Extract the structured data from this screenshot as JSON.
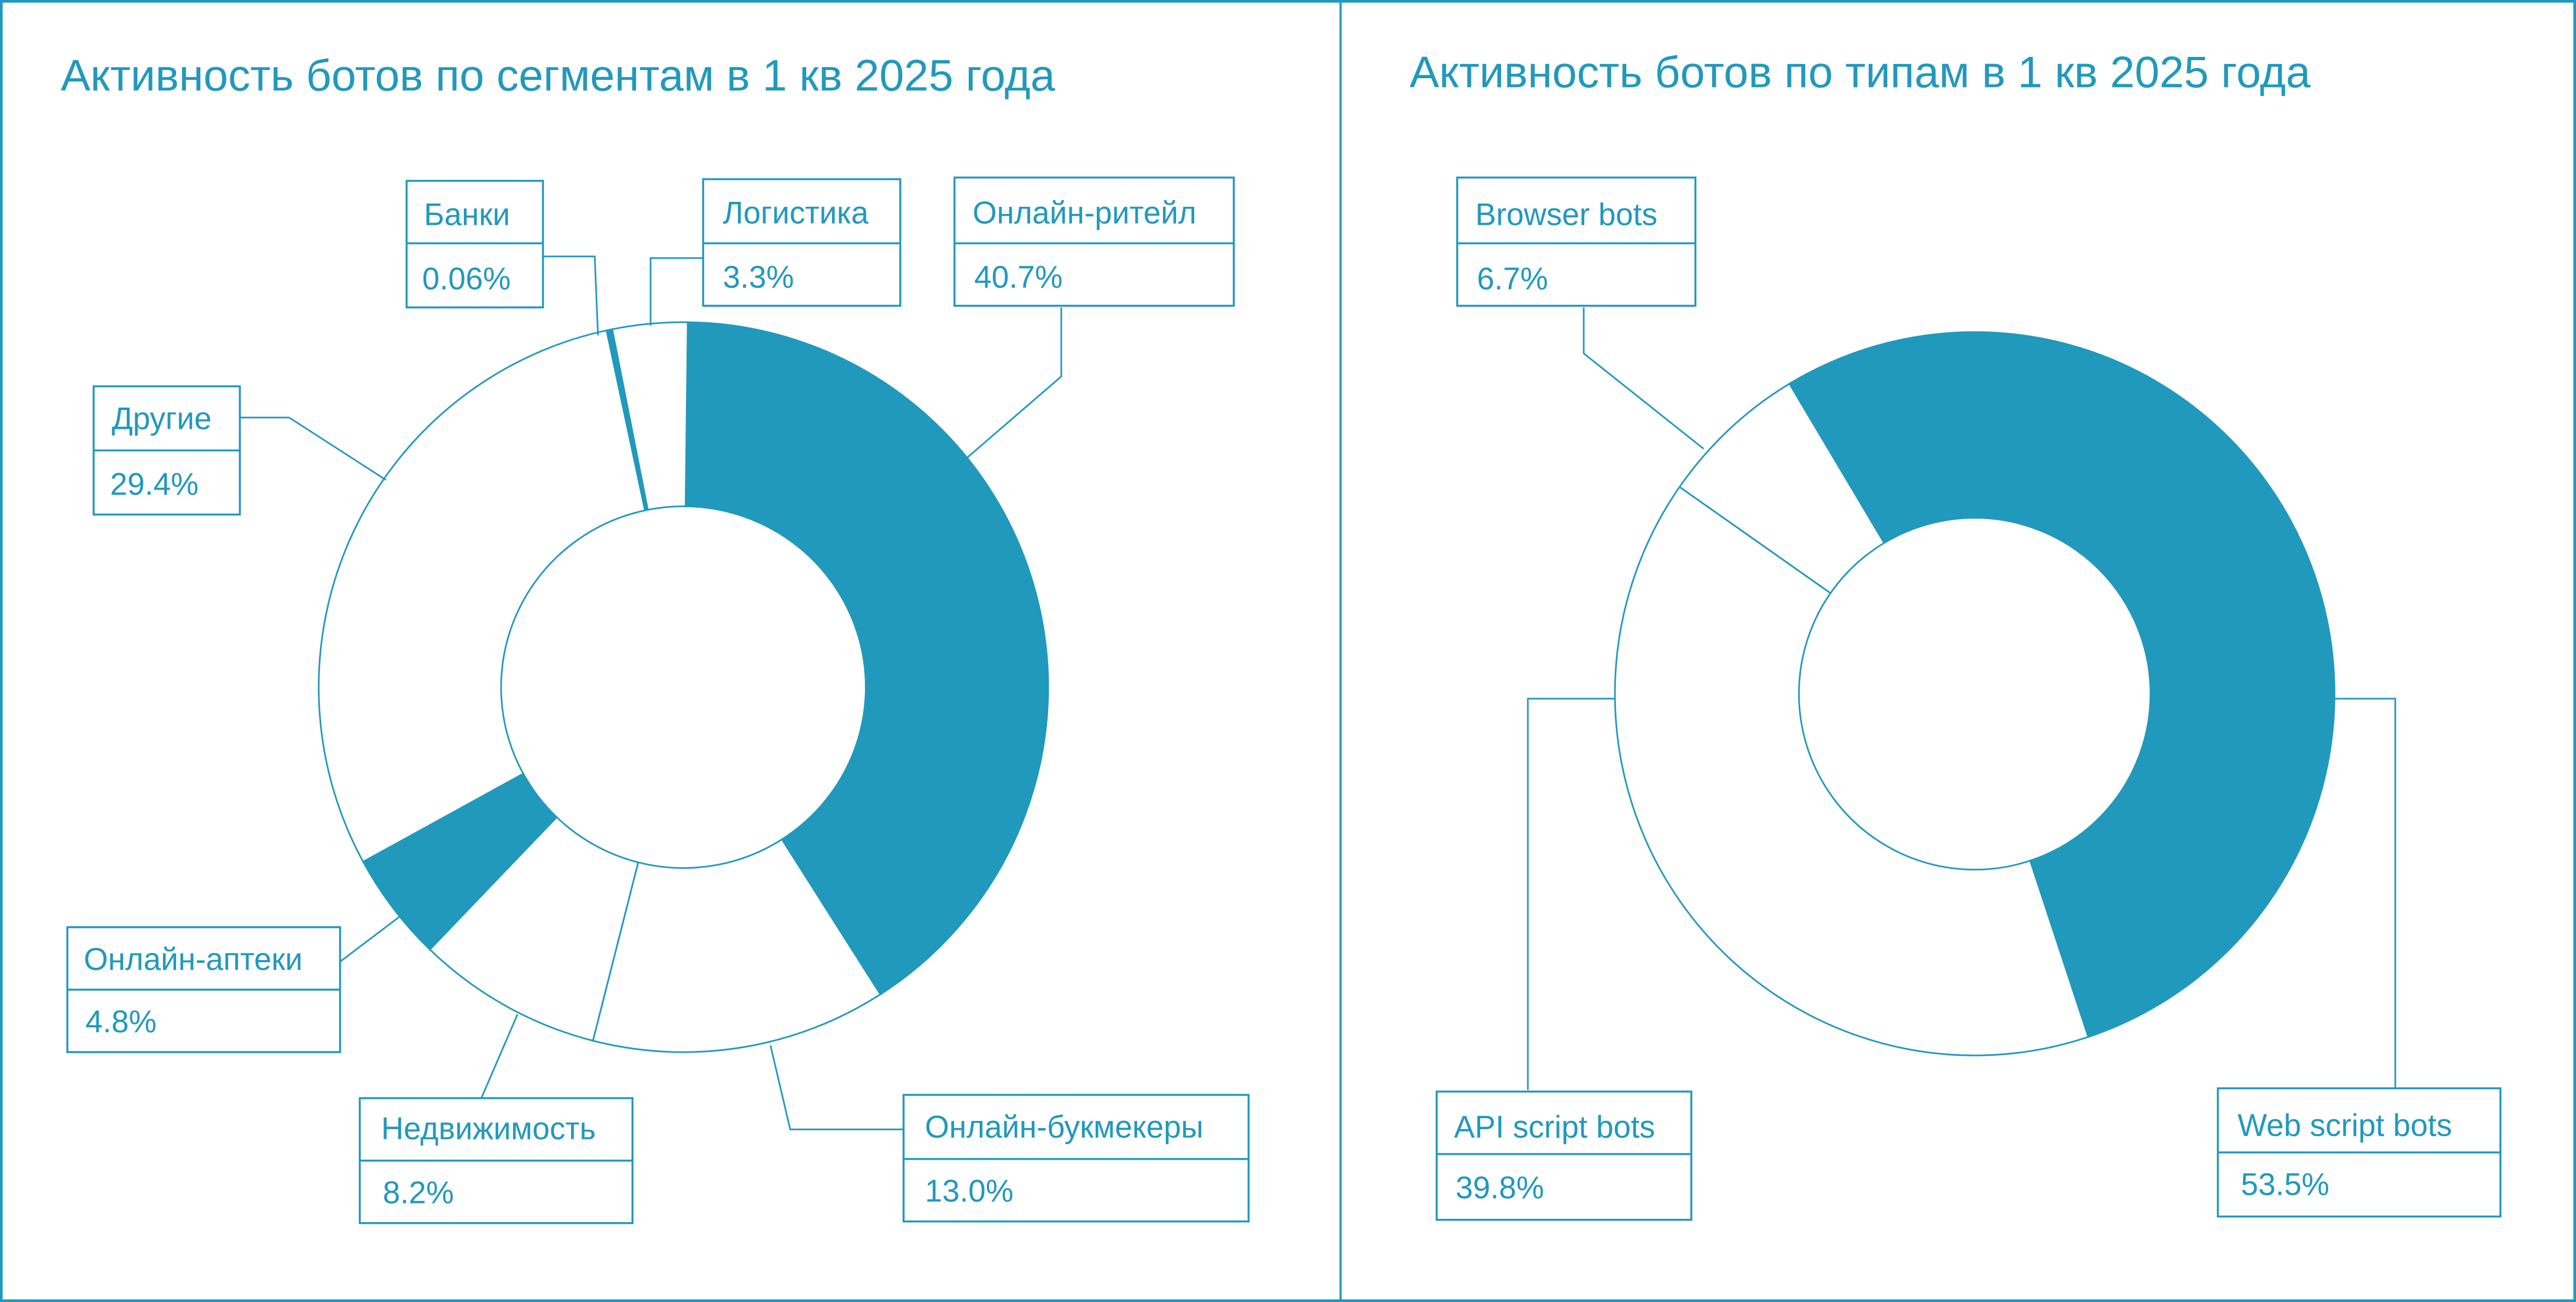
{
  "colors": {
    "accent": "#2199bd",
    "background": "#ffffff"
  },
  "chart_data": [
    {
      "type": "pie",
      "variant": "donut",
      "title": "Активность ботов по сегментам в 1 кв 2025 года",
      "unit": "%",
      "direction": "clockwise from top",
      "categories": [
        "Онлайн-ритейл",
        "Онлайн-букмекеры",
        "Недвижимость",
        "Онлайн-аптеки",
        "Другие",
        "Банки",
        "Логистика"
      ],
      "values": [
        40.7,
        13.0,
        8.2,
        4.8,
        29.4,
        0.06,
        3.3
      ],
      "labels": [
        "40.7%",
        "13.0%",
        "8.2%",
        "4.8%",
        "29.4%",
        "0.06%",
        "3.3%"
      ],
      "filled": [
        true,
        false,
        false,
        true,
        false,
        true,
        false
      ]
    },
    {
      "type": "pie",
      "variant": "donut",
      "title": "Активность ботов по типам в 1 кв 2025 года",
      "unit": "%",
      "direction": "clockwise",
      "categories": [
        "Web script bots",
        "API script bots",
        "Browser bots"
      ],
      "values": [
        53.5,
        39.8,
        6.7
      ],
      "labels": [
        "53.5%",
        "39.8%",
        "6.7%"
      ],
      "filled": [
        true,
        false,
        false
      ]
    }
  ]
}
